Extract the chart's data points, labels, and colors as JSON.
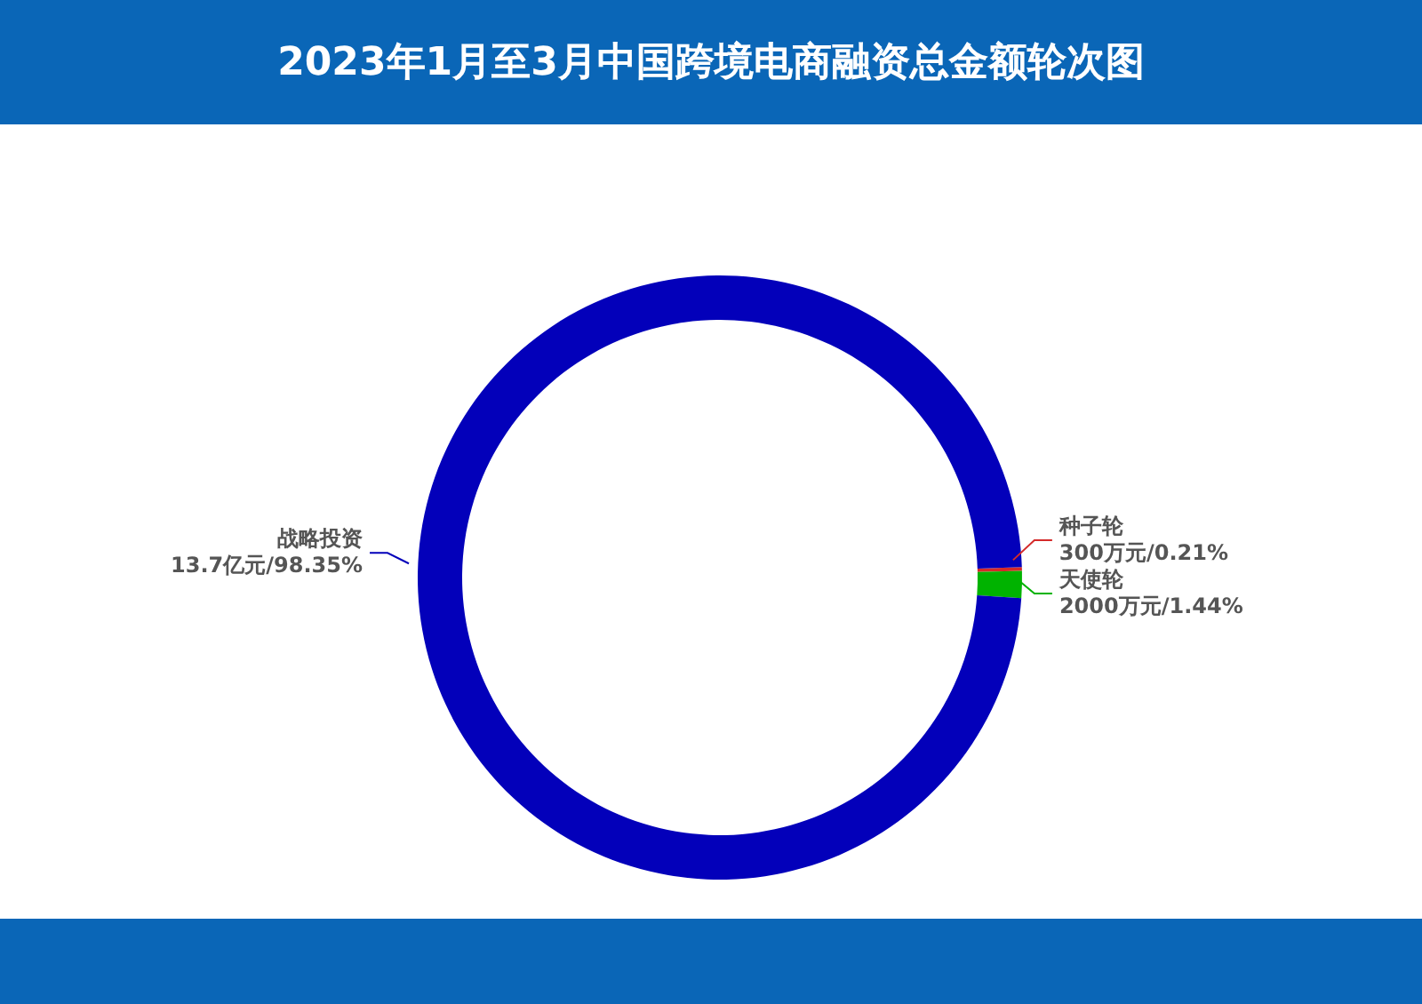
{
  "chart_data": {
    "type": "donut",
    "title": "2023年1月至3月中国跨境电商融资总金额轮次图",
    "categories": [
      "种子轮",
      "天使轮",
      "战略投资"
    ],
    "values": [
      0.21,
      1.44,
      98.35
    ],
    "colors": [
      "#d42a2a",
      "#00b300",
      "#0300ba"
    ],
    "value_labels": [
      "300万元/0.21%",
      "2000万元/1.44%",
      "13.7亿元/98.35%"
    ]
  }
}
